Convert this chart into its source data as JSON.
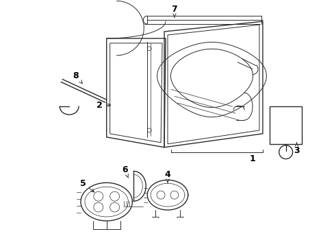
{
  "background_color": "#ffffff",
  "line_color": "#2a2a2a",
  "label_color": "#000000",
  "fig_width": 4.89,
  "fig_height": 3.6,
  "dpi": 100,
  "font_size": 9
}
